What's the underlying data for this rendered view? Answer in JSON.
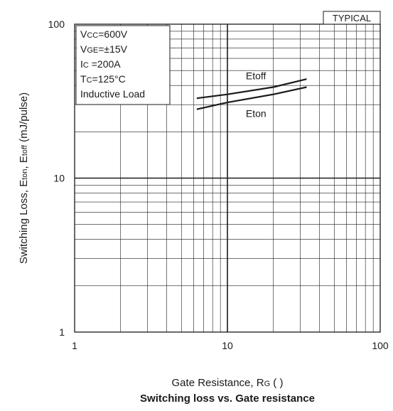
{
  "chart_data": {
    "type": "line",
    "title": "Switching loss vs. Gate resistance",
    "badge": "TYPICAL",
    "xlabel": {
      "main": "Gate Resistance, R",
      "sub": "G",
      "unit": " (  )"
    },
    "ylabel": {
      "p1": "Switching Loss, E",
      "s1": "ton",
      "p2": ", E",
      "s2": "toff",
      "p3": " (mJ/pulse)"
    },
    "x_scale": "log",
    "y_scale": "log",
    "xlim": [
      1,
      100
    ],
    "ylim": [
      1,
      100
    ],
    "x_ticks": [
      "1",
      "10",
      "100"
    ],
    "y_ticks": [
      "1",
      "10",
      "100"
    ],
    "grid": true,
    "conditions": [
      {
        "p": "V",
        "s": "CC",
        "v": "=600V"
      },
      {
        "p": "V",
        "s": "GE",
        "v": "=±15V"
      },
      {
        "p": "I",
        "s": "C",
        "v": " =200A"
      },
      {
        "p": "T",
        "s": "C",
        "v": "=125°C"
      },
      {
        "p": "Inductive Load",
        "s": "",
        "v": ""
      }
    ],
    "series": [
      {
        "name": "Etoff",
        "x": [
          6.3,
          10,
          20,
          33
        ],
        "y": [
          33,
          35,
          39,
          44
        ]
      },
      {
        "name": "Eton",
        "x": [
          6.3,
          10,
          20,
          33
        ],
        "y": [
          28,
          31,
          35,
          39
        ]
      }
    ]
  }
}
